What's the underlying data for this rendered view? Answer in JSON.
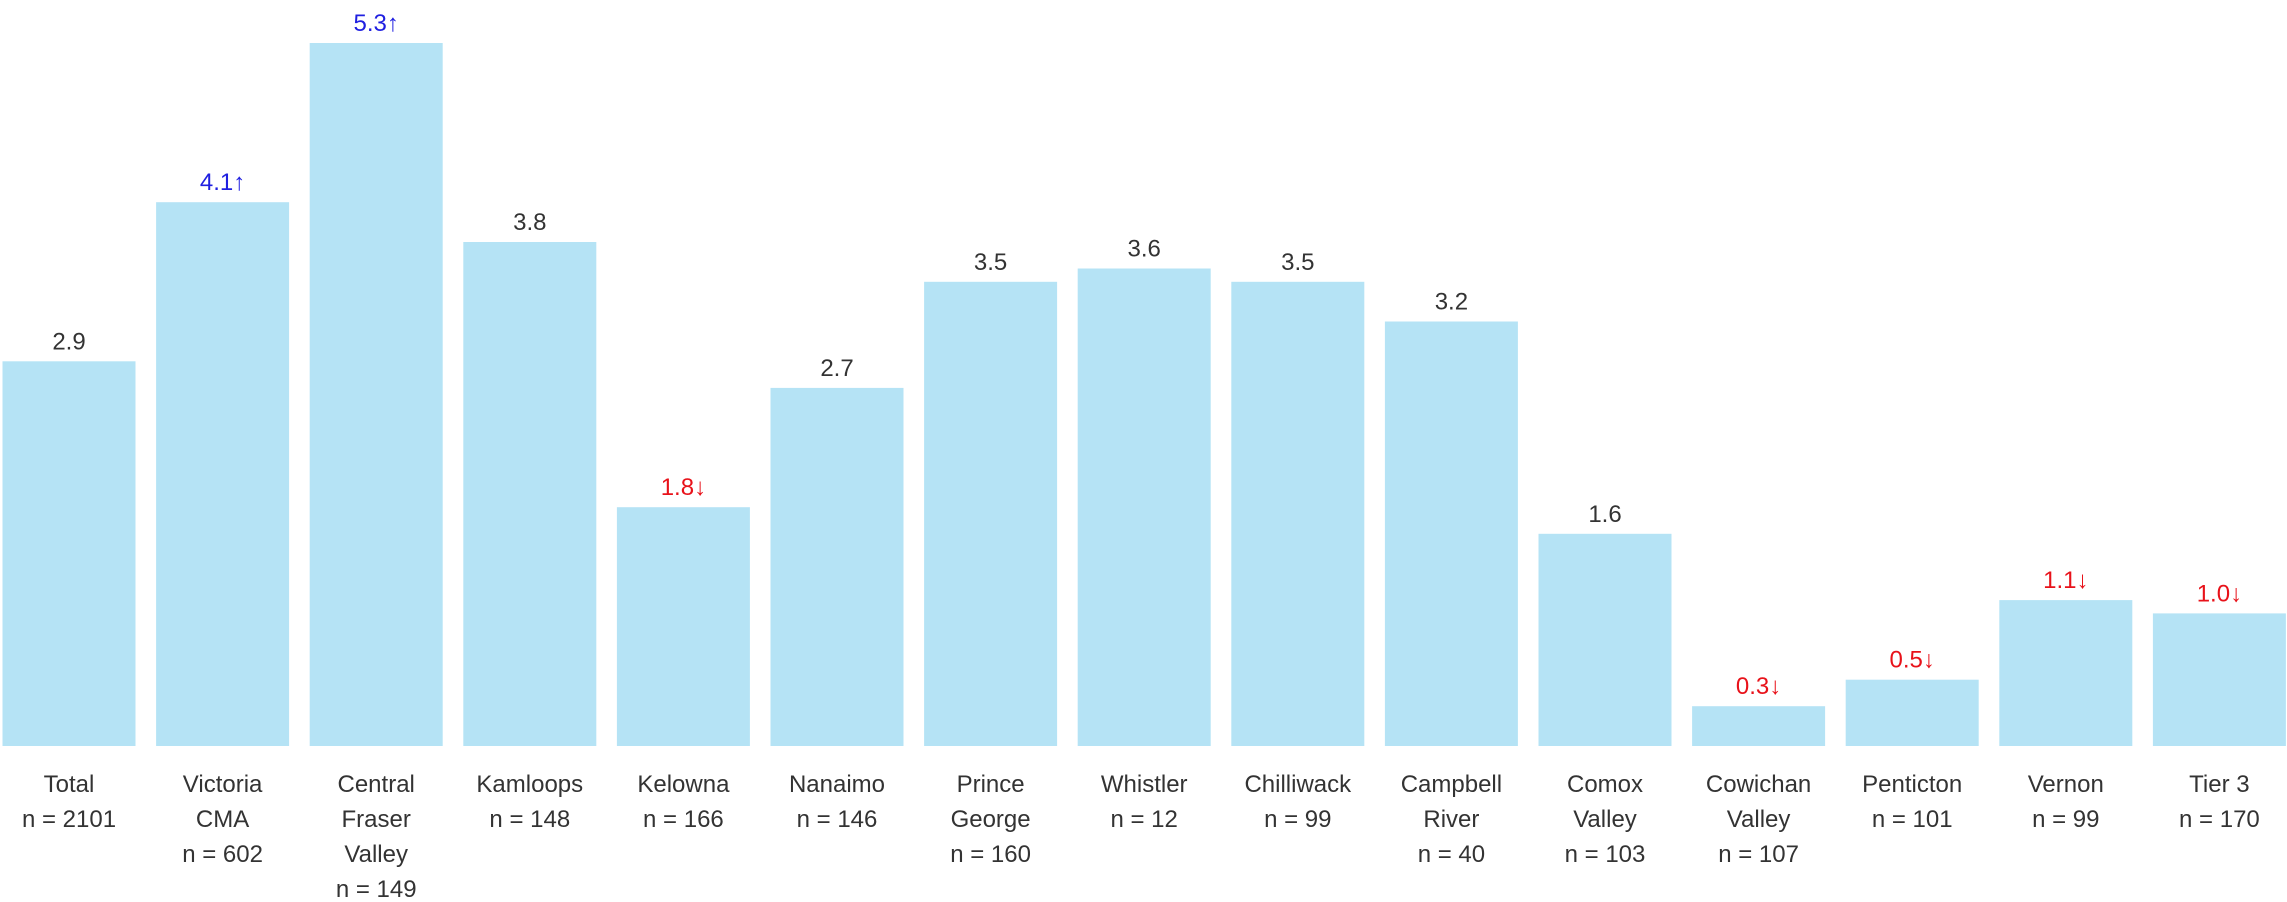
{
  "chart_data": {
    "type": "bar",
    "title": "",
    "xlabel": "",
    "ylabel": "",
    "ylim": [
      0,
      5.3
    ],
    "grid": false,
    "legend": "none",
    "categories": [
      {
        "lines": [
          "Total",
          "n = 2101"
        ]
      },
      {
        "lines": [
          "Victoria",
          "CMA",
          "n = 602"
        ]
      },
      {
        "lines": [
          "Central",
          "Fraser",
          "Valley",
          "n = 149"
        ]
      },
      {
        "lines": [
          "Kamloops",
          "n = 148"
        ]
      },
      {
        "lines": [
          "Kelowna",
          "n = 166"
        ]
      },
      {
        "lines": [
          "Nanaimo",
          "n = 146"
        ]
      },
      {
        "lines": [
          "Prince",
          "George",
          "n = 160"
        ]
      },
      {
        "lines": [
          "Whistler",
          "n = 12"
        ]
      },
      {
        "lines": [
          "Chilliwack",
          "n = 99"
        ]
      },
      {
        "lines": [
          "Campbell",
          "River",
          "n = 40"
        ]
      },
      {
        "lines": [
          "Comox",
          "Valley",
          "n = 103"
        ]
      },
      {
        "lines": [
          "Cowichan",
          "Valley",
          "n = 107"
        ]
      },
      {
        "lines": [
          "Penticton",
          "n = 101"
        ]
      },
      {
        "lines": [
          "Vernon",
          "n = 99"
        ]
      },
      {
        "lines": [
          "Tier 3",
          "n = 170"
        ]
      }
    ],
    "values": [
      2.9,
      4.1,
      5.3,
      3.8,
      1.8,
      2.7,
      3.5,
      3.6,
      3.5,
      3.2,
      1.6,
      0.3,
      0.5,
      1.1,
      1.0
    ],
    "value_labels": [
      "2.9",
      "4.1↑",
      "5.3↑",
      "3.8",
      "1.8↓",
      "2.7",
      "3.5",
      "3.6",
      "3.5",
      "3.2",
      "1.6",
      "0.3↓",
      "0.5↓",
      "1.1↓",
      "1.0↓"
    ],
    "significance": [
      "none",
      "up",
      "up",
      "none",
      "down",
      "none",
      "none",
      "none",
      "none",
      "none",
      "none",
      "down",
      "down",
      "down",
      "down"
    ]
  },
  "colors": {
    "bar": "#b5e3f5",
    "label_default": "#333333",
    "label_up": "#1f1fe0",
    "label_down": "#e8121a"
  }
}
